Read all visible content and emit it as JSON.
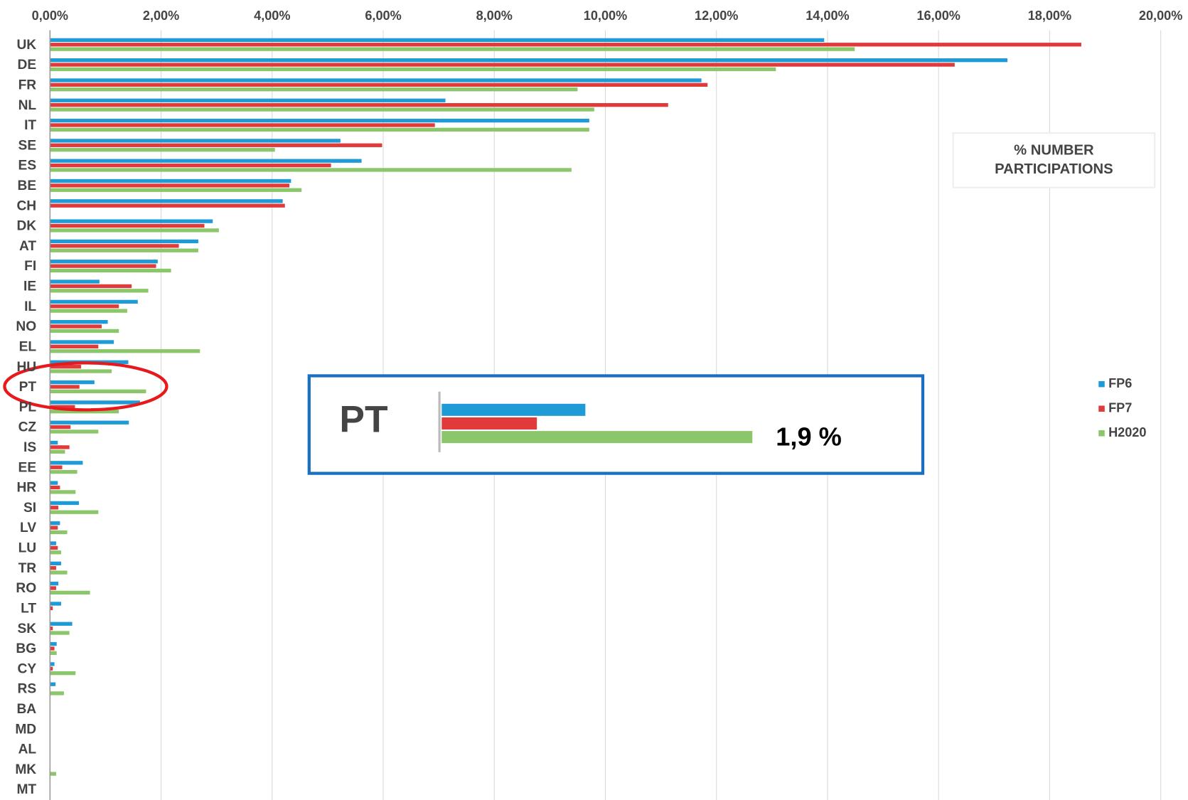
{
  "chart_data": {
    "type": "bar",
    "orientation": "horizontal",
    "title": "% NUMBER PARTICIPATIONS",
    "annotation": "1,9 %",
    "legend": "right",
    "grid": true,
    "categories": [
      "UK",
      "DE",
      "FR",
      "NL",
      "IT",
      "SE",
      "ES",
      "BE",
      "CH",
      "DK",
      "AT",
      "FI",
      "IE",
      "IL",
      "NO",
      "EL",
      "HU",
      "PT",
      "PL",
      "CZ",
      "IS",
      "EE",
      "HR",
      "SI",
      "LV",
      "LU",
      "TR",
      "RO",
      "LT",
      "SK",
      "BG",
      "CY",
      "RS",
      "BA",
      "MD",
      "AL",
      "MK",
      "MT"
    ],
    "series": [
      {
        "name": "FP6",
        "color": "#1e9ad6",
        "values": [
          13.94,
          17.24,
          11.73,
          7.12,
          9.71,
          5.23,
          5.61,
          4.34,
          4.19,
          2.93,
          2.67,
          1.94,
          0.89,
          1.58,
          1.04,
          1.15,
          1.41,
          0.8,
          1.62,
          1.42,
          0.14,
          0.59,
          0.14,
          0.52,
          0.18,
          0.11,
          0.2,
          0.15,
          0.2,
          0.4,
          0.12,
          0.08,
          0.1,
          0,
          0,
          0,
          0,
          0
        ]
      },
      {
        "name": "FP7",
        "color": "#e03a3a",
        "values": [
          18.57,
          16.29,
          11.84,
          11.13,
          6.93,
          5.98,
          5.06,
          4.31,
          4.23,
          2.78,
          2.32,
          1.91,
          1.47,
          1.24,
          0.93,
          0.87,
          0.56,
          0.53,
          0.45,
          0.37,
          0.35,
          0.22,
          0.18,
          0.15,
          0.14,
          0.14,
          0.11,
          0.11,
          0.05,
          0.05,
          0.08,
          0.05,
          0,
          0,
          0,
          0,
          0,
          0
        ]
      },
      {
        "name": "H2020",
        "color": "#8cc66a",
        "values": [
          14.49,
          13.07,
          9.5,
          9.8,
          9.71,
          4.05,
          9.39,
          4.53,
          0,
          3.04,
          2.67,
          2.18,
          1.77,
          1.39,
          1.24,
          2.7,
          1.11,
          1.73,
          1.24,
          0.87,
          0.27,
          0.49,
          0.46,
          0.87,
          0.31,
          0.2,
          0.31,
          0.72,
          0,
          0.35,
          0.12,
          0.46,
          0.25,
          0,
          0,
          0,
          0.11,
          0
        ]
      }
    ],
    "xlim": [
      0,
      20
    ],
    "xticks": [
      {
        "value": 0,
        "label": "0,00%"
      },
      {
        "value": 2,
        "label": "2,00%"
      },
      {
        "value": 4,
        "label": "4,00%"
      },
      {
        "value": 6,
        "label": "6,00%"
      },
      {
        "value": 8,
        "label": "8,00%"
      },
      {
        "value": 10,
        "label": "10,00%"
      },
      {
        "value": 12,
        "label": "12,00%"
      },
      {
        "value": 14,
        "label": "14,00%"
      },
      {
        "value": 16,
        "label": "16,00%"
      },
      {
        "value": 18,
        "label": "18,00%"
      },
      {
        "value": 20,
        "label": "20,00%"
      }
    ]
  }
}
